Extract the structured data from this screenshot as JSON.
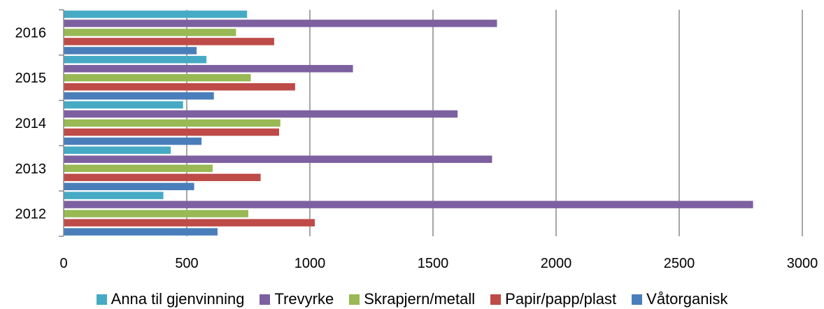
{
  "chart_data": {
    "type": "bar",
    "orientation": "horizontal",
    "categories": [
      "2012",
      "2013",
      "2014",
      "2015",
      "2016"
    ],
    "series": [
      {
        "name": "Våtorganisk",
        "color": "#4a7ebb",
        "values": [
          625,
          530,
          560,
          610,
          540
        ]
      },
      {
        "name": "Papir/papp/plast",
        "color": "#be4b48",
        "values": [
          1020,
          800,
          875,
          940,
          855
        ]
      },
      {
        "name": "Skrapjern/metall",
        "color": "#98b954",
        "values": [
          750,
          605,
          880,
          760,
          700
        ]
      },
      {
        "name": "Trevyrke",
        "color": "#7d60a0",
        "values": [
          2800,
          1740,
          1600,
          1175,
          1760
        ]
      },
      {
        "name": "Anna til gjenvinning",
        "color": "#46aac5",
        "values": [
          405,
          435,
          485,
          580,
          745
        ]
      }
    ],
    "xlim": [
      0,
      3000
    ],
    "xticks": [
      "0",
      "500",
      "1000",
      "1500",
      "2000",
      "2500",
      "3000"
    ],
    "grid": "vertical",
    "legend_position": "bottom",
    "legend_order": [
      "Anna til gjenvinning",
      "Trevyrke",
      "Skrapjern/metall",
      "Papir/papp/plast",
      "Våtorganisk"
    ]
  }
}
